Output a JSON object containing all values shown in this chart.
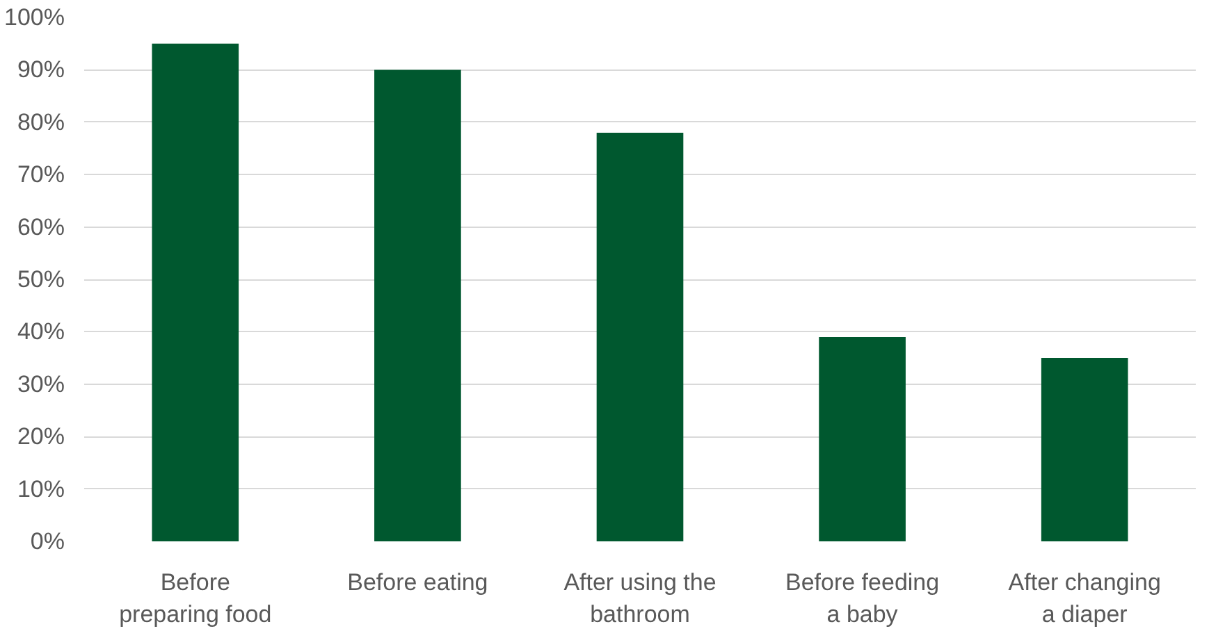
{
  "chart_data": {
    "type": "bar",
    "categories": [
      "Before preparing food",
      "Before eating",
      "After using the bathroom",
      "Before feeding a baby",
      "After changing a diaper"
    ],
    "values": [
      95,
      90,
      78,
      39,
      35
    ],
    "color": "#00582f",
    "ylim": [
      0,
      100
    ],
    "yticks": [
      {
        "value": 0,
        "label": "0%"
      },
      {
        "value": 10,
        "label": "10%"
      },
      {
        "value": 20,
        "label": "20%"
      },
      {
        "value": 30,
        "label": "30%"
      },
      {
        "value": 40,
        "label": "40%"
      },
      {
        "value": 50,
        "label": "50%"
      },
      {
        "value": 60,
        "label": "60%"
      },
      {
        "value": 70,
        "label": "70%"
      },
      {
        "value": 80,
        "label": "80%"
      },
      {
        "value": 90,
        "label": "90%"
      },
      {
        "value": 100,
        "label": "100%"
      }
    ],
    "grid": "y"
  }
}
